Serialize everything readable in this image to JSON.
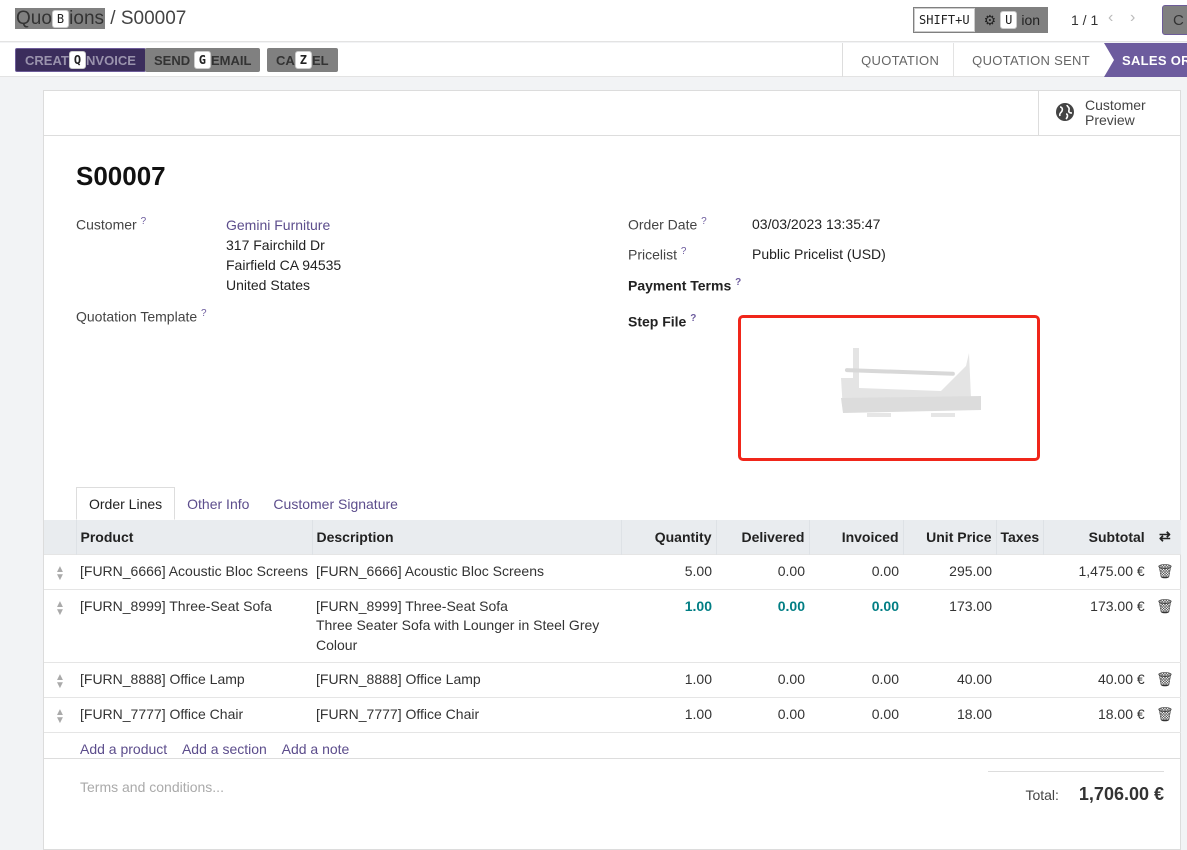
{
  "breadcrumb": {
    "parent": "Quotations",
    "parent_visible_start": "Quo",
    "parent_visible_end": "ions",
    "parent_key": "B",
    "current": "S00007"
  },
  "top_right": {
    "shortcut": "SHIFT+U",
    "action_key": "U",
    "action_label_end": "ion",
    "pager": "1 / 1",
    "create_partial": "C"
  },
  "buttons": {
    "create_invoice": {
      "start": "CREAT",
      "end": "NVOICE",
      "key": "Q"
    },
    "send_email": {
      "start": "SEND",
      "end": "EMAIL",
      "key": "G"
    },
    "cancel": {
      "start": "CA",
      "end": "EL",
      "key": "Z"
    }
  },
  "statusbar": [
    "QUOTATION",
    "QUOTATION SENT",
    "SALES ORDER"
  ],
  "customer_preview": {
    "line1": "Customer",
    "line2": "Preview"
  },
  "record": {
    "name": "S00007"
  },
  "fields": {
    "customer": {
      "label": "Customer",
      "name": "Gemini Furniture",
      "address": [
        "317 Fairchild Dr",
        "Fairfield CA 94535",
        "United States"
      ]
    },
    "quotation_template": {
      "label": "Quotation Template"
    },
    "order_date": {
      "label": "Order Date",
      "value": "03/03/2023 13:35:47"
    },
    "pricelist": {
      "label": "Pricelist",
      "value": "Public Pricelist (USD)"
    },
    "payment_terms": {
      "label": "Payment Terms"
    },
    "step_file": {
      "label": "Step File"
    }
  },
  "help_mark": "?",
  "tabs": [
    "Order Lines",
    "Other Info",
    "Customer Signature"
  ],
  "table": {
    "headers": [
      "Product",
      "Description",
      "Quantity",
      "Delivered",
      "Invoiced",
      "Unit Price",
      "Taxes",
      "Subtotal"
    ],
    "rows": [
      {
        "product": "[FURN_6666] Acoustic Bloc Screens",
        "description": [
          "[FURN_6666] Acoustic Bloc Screens"
        ],
        "quantity": "5.00",
        "delivered": "0.00",
        "invoiced": "0.00",
        "unit_price": "295.00",
        "taxes": "",
        "subtotal": "1,475.00 €"
      },
      {
        "product": "[FURN_8999] Three-Seat Sofa",
        "description": [
          "[FURN_8999] Three-Seat Sofa",
          "Three Seater Sofa with Lounger in Steel Grey",
          "Colour"
        ],
        "quantity": "1.00",
        "delivered": "0.00",
        "invoiced": "0.00",
        "unit_price": "173.00",
        "taxes": "",
        "subtotal": "173.00 €",
        "highlight": true
      },
      {
        "product": "[FURN_8888] Office Lamp",
        "description": [
          "[FURN_8888] Office Lamp"
        ],
        "quantity": "1.00",
        "delivered": "0.00",
        "invoiced": "0.00",
        "unit_price": "40.00",
        "taxes": "",
        "subtotal": "40.00 €"
      },
      {
        "product": "[FURN_7777] Office Chair",
        "description": [
          "[FURN_7777] Office Chair"
        ],
        "quantity": "1.00",
        "delivered": "0.00",
        "invoiced": "0.00",
        "unit_price": "18.00",
        "taxes": "",
        "subtotal": "18.00 €"
      }
    ],
    "add_links": [
      "Add a product",
      "Add a section",
      "Add a note"
    ]
  },
  "footer": {
    "terms_placeholder": "Terms and conditions...",
    "total_label": "Total:",
    "total_value": "1,706.00 €"
  },
  "colors": {
    "primary": "#3b2d5c",
    "status_active": "#6d5c9e",
    "link": "#5c4d8c",
    "highlight": "#017e84",
    "step_border": "#f0261a"
  }
}
